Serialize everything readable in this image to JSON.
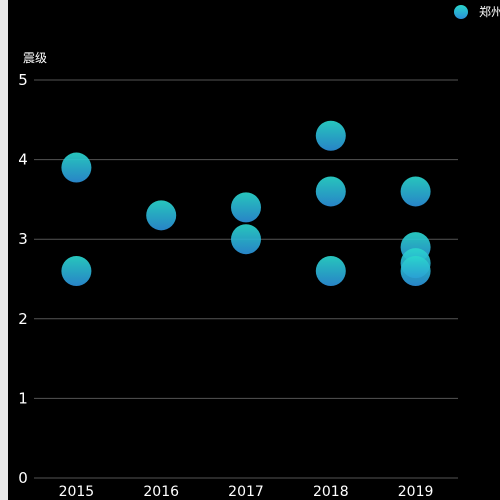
{
  "chart_data": {
    "type": "scatter",
    "ylabel": "震级",
    "xlabel": "",
    "categories": [
      "2015",
      "2016",
      "2017",
      "2018",
      "2019"
    ],
    "ylim": [
      0,
      5
    ],
    "yticks": [
      "0",
      "1",
      "2",
      "3",
      "4",
      "5"
    ],
    "grid": true,
    "legend_position": "top-right",
    "series": [
      {
        "name": "郑州",
        "points": [
          {
            "x": "2015",
            "y": 3.9
          },
          {
            "x": "2015",
            "y": 2.6
          },
          {
            "x": "2016",
            "y": 3.3
          },
          {
            "x": "2017",
            "y": 3.4
          },
          {
            "x": "2017",
            "y": 3.0
          },
          {
            "x": "2018",
            "y": 4.3
          },
          {
            "x": "2018",
            "y": 3.6
          },
          {
            "x": "2018",
            "y": 2.6
          },
          {
            "x": "2019",
            "y": 3.6
          },
          {
            "x": "2019",
            "y": 2.9
          },
          {
            "x": "2019",
            "y": 2.7
          },
          {
            "x": "2019",
            "y": 2.6
          }
        ]
      }
    ],
    "colors": {
      "background": "#000000",
      "point_top": "#2ad6cc",
      "point_bottom": "#2b8fd8",
      "grid": "#555555",
      "text": "#ffffff"
    }
  }
}
